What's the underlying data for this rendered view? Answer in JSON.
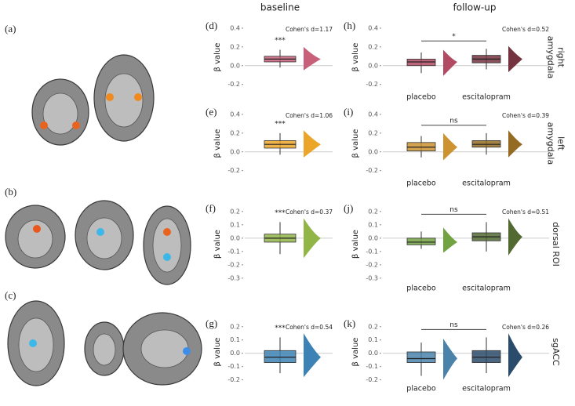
{
  "figure": {
    "panels": [
      "(a)",
      "(b)",
      "(c)"
    ],
    "columns": [
      "baseline",
      "follow-up"
    ],
    "rows": [
      [
        "right",
        "amygdala"
      ],
      [
        "left",
        "amygdala"
      ],
      [
        "dorsal ROI"
      ],
      [
        "sgACC"
      ]
    ]
  },
  "chart_data": [
    {
      "type": "box",
      "panel": "(d)",
      "ylabel": "β value",
      "annotation": "Cohen's d=1.17",
      "significance": "***",
      "ylim": [
        -0.27,
        0.45
      ],
      "yticks": [
        0.4,
        0.2,
        {
          "value": 0,
          "label": "0.0"
        },
        -0.2
      ],
      "series": [
        {
          "color": "#c8607a",
          "q1": 0.04,
          "median": 0.07,
          "q3": 0.1,
          "whislo": -0.02,
          "whishi": 0.17
        }
      ]
    },
    {
      "type": "box",
      "panel": "(e)",
      "ylabel": "β value",
      "annotation": "Cohen's d=1.06",
      "significance": "***",
      "ylim": [
        -0.27,
        0.45
      ],
      "yticks": [
        0.4,
        0.2,
        {
          "value": 0,
          "label": "0.0"
        },
        -0.2
      ],
      "series": [
        {
          "color": "#eba528",
          "q1": 0.04,
          "median": 0.08,
          "q3": 0.12,
          "whislo": -0.03,
          "whishi": 0.2
        }
      ]
    },
    {
      "type": "box",
      "panel": "(f)",
      "ylabel": "β value",
      "annotation": "Cohen's d=0.37",
      "significance": "***",
      "ylim": [
        -0.33,
        0.24
      ],
      "yticks": [
        0.2,
        0.1,
        {
          "value": 0,
          "label": "0.0"
        },
        -0.1,
        -0.2,
        -0.3
      ],
      "series": [
        {
          "color": "#92b548",
          "q1": -0.03,
          "median": 0,
          "q3": 0.03,
          "whislo": -0.12,
          "whishi": 0.12
        }
      ]
    },
    {
      "type": "box",
      "panel": "(g)",
      "ylabel": "β value",
      "annotation": "Cohen's d=0.54",
      "significance": "***",
      "ylim": [
        -0.22,
        0.24
      ],
      "yticks": [
        0.2,
        0.1,
        {
          "value": 0,
          "label": "0.0"
        },
        -0.1,
        -0.2
      ],
      "series": [
        {
          "color": "#3d82b5",
          "q1": -0.07,
          "median": -0.03,
          "q3": 0.02,
          "whislo": -0.15,
          "whishi": 0.12
        }
      ]
    },
    {
      "type": "box",
      "panel": "(h)",
      "ylabel": "β value",
      "annotation": "Cohen's d=0.52",
      "significance": "*",
      "ylim": [
        -0.27,
        0.45
      ],
      "yticks": [
        0.4,
        0.2,
        {
          "value": 0,
          "label": "0.0"
        },
        -0.2
      ],
      "categories": [
        "placebo",
        "escitalopram"
      ],
      "series": [
        {
          "color": "#b24a64",
          "q1": 0,
          "median": 0.04,
          "q3": 0.07,
          "whislo": -0.08,
          "whishi": 0.14
        },
        {
          "color": "#74333f",
          "q1": 0.03,
          "median": 0.07,
          "q3": 0.11,
          "whislo": -0.04,
          "whishi": 0.18
        }
      ]
    },
    {
      "type": "box",
      "panel": "(i)",
      "ylabel": "β value",
      "annotation": "Cohen's d=0.39",
      "significance": "ns",
      "ylim": [
        -0.27,
        0.45
      ],
      "yticks": [
        0.4,
        0.2,
        {
          "value": 0,
          "label": "0.0"
        },
        -0.2
      ],
      "categories": [
        "placebo",
        "escitalopram"
      ],
      "series": [
        {
          "color": "#cc9330",
          "q1": 0.01,
          "median": 0.05,
          "q3": 0.1,
          "whislo": -0.06,
          "whishi": 0.17
        },
        {
          "color": "#946b22",
          "q1": 0.05,
          "median": 0.08,
          "q3": 0.12,
          "whislo": -0.03,
          "whishi": 0.2
        }
      ]
    },
    {
      "type": "box",
      "panel": "(j)",
      "ylabel": "β value",
      "annotation": "Cohen's d=0.51",
      "significance": "ns",
      "ylim": [
        -0.33,
        0.24
      ],
      "yticks": [
        0.2,
        0.1,
        {
          "value": 0,
          "label": "0.0"
        },
        -0.1,
        -0.2,
        -0.3
      ],
      "categories": [
        "placebo",
        "escitalopram"
      ],
      "series": [
        {
          "color": "#72a242",
          "q1": -0.05,
          "median": -0.03,
          "q3": 0,
          "whislo": -0.08,
          "whishi": 0.05
        },
        {
          "color": "#526a32",
          "q1": -0.02,
          "median": 0.01,
          "q3": 0.04,
          "whislo": -0.1,
          "whishi": 0.12
        }
      ]
    },
    {
      "type": "box",
      "panel": "(k)",
      "ylabel": "β value",
      "annotation": "Cohen's d=0.26",
      "significance": "ns",
      "ylim": [
        -0.22,
        0.24
      ],
      "yticks": [
        0.2,
        0.1,
        {
          "value": 0,
          "label": "0.0"
        },
        -0.1,
        -0.2
      ],
      "categories": [
        "placebo",
        "escitalopram"
      ],
      "series": [
        {
          "color": "#4a82aa",
          "q1": -0.07,
          "median": -0.04,
          "q3": 0.01,
          "whislo": -0.17,
          "whishi": 0.08
        },
        {
          "color": "#2b4b6a",
          "q1": -0.07,
          "median": -0.03,
          "q3": 0.02,
          "whislo": -0.15,
          "whishi": 0.12
        }
      ]
    }
  ]
}
